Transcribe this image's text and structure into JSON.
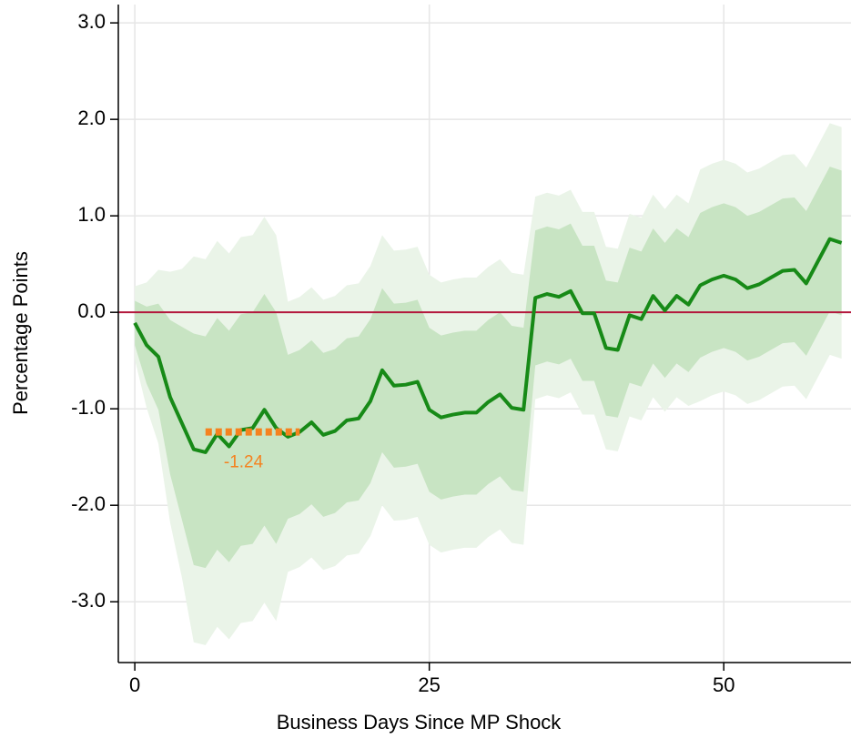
{
  "chart_data": {
    "type": "line",
    "xlabel": "Business Days Since MP Shock",
    "ylabel": "Percentage Points",
    "x": [
      0,
      1,
      2,
      3,
      4,
      5,
      6,
      7,
      8,
      9,
      10,
      11,
      12,
      13,
      14,
      15,
      16,
      17,
      18,
      19,
      20,
      21,
      22,
      23,
      24,
      25,
      26,
      27,
      28,
      29,
      30,
      31,
      32,
      33,
      34,
      35,
      36,
      37,
      38,
      39,
      40,
      41,
      42,
      43,
      44,
      45,
      46,
      47,
      48,
      49,
      50,
      51,
      52,
      53,
      54,
      55,
      56,
      57,
      58,
      59,
      60
    ],
    "series": [
      {
        "color": "#178a17",
        "values": [
          -0.11,
          -0.34,
          -0.46,
          -0.88,
          -1.15,
          -1.42,
          -1.45,
          -1.26,
          -1.39,
          -1.22,
          -1.2,
          -1.01,
          -1.2,
          -1.29,
          -1.24,
          -1.14,
          -1.27,
          -1.23,
          -1.12,
          -1.1,
          -0.92,
          -0.6,
          -0.76,
          -0.75,
          -0.72,
          -1.01,
          -1.09,
          -1.06,
          -1.04,
          -1.04,
          -0.93,
          -0.85,
          -0.99,
          -1.01,
          0.15,
          0.19,
          0.16,
          0.22,
          -0.01,
          -0.01,
          -0.37,
          -0.39,
          -0.03,
          -0.07,
          0.17,
          0.02,
          0.17,
          0.08,
          0.28,
          0.34,
          0.38,
          0.34,
          0.25,
          0.29,
          0.36,
          0.43,
          0.44,
          0.3,
          0.53,
          0.76,
          0.72
        ]
      }
    ],
    "bands": [
      {
        "color": "#eaf4e8",
        "upper": [
          0.27,
          0.31,
          0.44,
          0.42,
          0.45,
          0.58,
          0.55,
          0.74,
          0.61,
          0.78,
          0.8,
          0.99,
          0.8,
          0.11,
          0.16,
          0.26,
          0.13,
          0.17,
          0.28,
          0.3,
          0.48,
          0.8,
          0.64,
          0.65,
          0.68,
          0.39,
          0.31,
          0.34,
          0.36,
          0.36,
          0.47,
          0.55,
          0.41,
          0.39,
          1.2,
          1.24,
          1.21,
          1.27,
          1.04,
          1.04,
          0.68,
          0.66,
          1.02,
          0.98,
          1.22,
          1.07,
          1.22,
          1.13,
          1.48,
          1.54,
          1.58,
          1.54,
          1.45,
          1.49,
          1.56,
          1.63,
          1.64,
          1.5,
          1.73,
          1.96,
          1.92
        ],
        "lower": [
          -0.49,
          -0.99,
          -1.36,
          -2.18,
          -2.75,
          -3.42,
          -3.45,
          -3.26,
          -3.39,
          -3.22,
          -3.2,
          -3.01,
          -3.2,
          -2.69,
          -2.64,
          -2.54,
          -2.67,
          -2.63,
          -2.52,
          -2.5,
          -2.32,
          -2.0,
          -2.16,
          -2.15,
          -2.12,
          -2.41,
          -2.49,
          -2.46,
          -2.44,
          -2.44,
          -2.33,
          -2.25,
          -2.39,
          -2.41,
          -0.9,
          -0.86,
          -0.89,
          -0.83,
          -1.06,
          -1.06,
          -1.42,
          -1.44,
          -1.08,
          -1.12,
          -0.88,
          -1.03,
          -0.88,
          -0.97,
          -0.92,
          -0.86,
          -0.82,
          -0.86,
          -0.95,
          -0.91,
          -0.84,
          -0.77,
          -0.76,
          -0.9,
          -0.67,
          -0.44,
          -0.48
        ]
      },
      {
        "color": "#c8e4c3",
        "upper": [
          0.12,
          0.06,
          0.09,
          -0.08,
          -0.15,
          -0.22,
          -0.25,
          -0.06,
          -0.19,
          -0.02,
          0.0,
          0.19,
          0.0,
          -0.44,
          -0.39,
          -0.29,
          -0.42,
          -0.38,
          -0.27,
          -0.25,
          -0.07,
          0.25,
          0.09,
          0.1,
          0.13,
          -0.16,
          -0.24,
          -0.21,
          -0.19,
          -0.19,
          -0.08,
          0.0,
          -0.14,
          -0.16,
          0.85,
          0.89,
          0.86,
          0.92,
          0.69,
          0.69,
          0.33,
          0.31,
          0.67,
          0.63,
          0.87,
          0.72,
          0.87,
          0.78,
          1.03,
          1.09,
          1.13,
          1.09,
          1.0,
          1.04,
          1.11,
          1.18,
          1.19,
          1.05,
          1.28,
          1.51,
          1.47
        ],
        "lower": [
          -0.34,
          -0.74,
          -1.01,
          -1.68,
          -2.15,
          -2.62,
          -2.65,
          -2.46,
          -2.59,
          -2.42,
          -2.4,
          -2.21,
          -2.4,
          -2.14,
          -2.09,
          -1.99,
          -2.12,
          -2.08,
          -1.97,
          -1.95,
          -1.77,
          -1.45,
          -1.61,
          -1.6,
          -1.57,
          -1.86,
          -1.94,
          -1.91,
          -1.89,
          -1.89,
          -1.78,
          -1.7,
          -1.84,
          -1.86,
          -0.55,
          -0.51,
          -0.54,
          -0.48,
          -0.71,
          -0.71,
          -1.07,
          -1.09,
          -0.73,
          -0.77,
          -0.53,
          -0.68,
          -0.53,
          -0.62,
          -0.47,
          -0.41,
          -0.37,
          -0.41,
          -0.5,
          -0.46,
          -0.39,
          -0.32,
          -0.31,
          -0.45,
          -0.22,
          0.01,
          -0.03
        ]
      }
    ],
    "hline": {
      "value": 0,
      "color": "#b3173c"
    },
    "annotation": {
      "value": -1.24,
      "x": [
        6,
        14
      ],
      "color": "#f5821f"
    },
    "xlim": [
      -1.4,
      60.8
    ],
    "ylim": [
      -3.63,
      3.19
    ],
    "xticks": [
      0,
      25,
      50
    ],
    "yticks": [
      {
        "value": -3,
        "label": "-3.0"
      },
      {
        "value": -2,
        "label": "-2.0"
      },
      {
        "value": -1,
        "label": "-1.0"
      },
      {
        "value": 0,
        "label": "0.0"
      },
      {
        "value": 1,
        "label": "1.0"
      },
      {
        "value": 2,
        "label": "2.0"
      },
      {
        "value": 3,
        "label": "3.0"
      }
    ],
    "grid": true
  }
}
